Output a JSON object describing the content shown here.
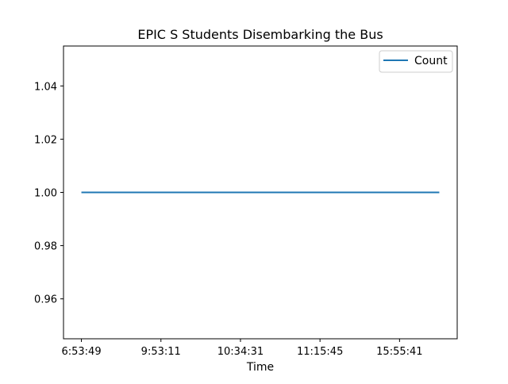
{
  "chart_data": {
    "type": "line",
    "title": "EPIC S Students Disembarking the Bus",
    "xlabel": "Time",
    "ylabel": "",
    "x_tick_labels": [
      "6:53:49",
      "9:53:11",
      "10:34:31",
      "11:15:45",
      "15:55:41"
    ],
    "x": [
      0,
      1,
      2,
      3,
      4,
      4.5
    ],
    "series": [
      {
        "name": "Count",
        "color": "#1f77b4",
        "values": [
          1,
          1,
          1,
          1,
          1,
          1
        ]
      }
    ],
    "xlim": [
      -0.225,
      4.725
    ],
    "ylim": [
      0.945,
      1.055
    ],
    "y_ticks": [
      0.96,
      0.98,
      1.0,
      1.02,
      1.04
    ],
    "y_tick_labels": [
      "0.96",
      "0.98",
      "1.00",
      "1.02",
      "1.04"
    ],
    "grid": false,
    "legend": "top-right"
  }
}
